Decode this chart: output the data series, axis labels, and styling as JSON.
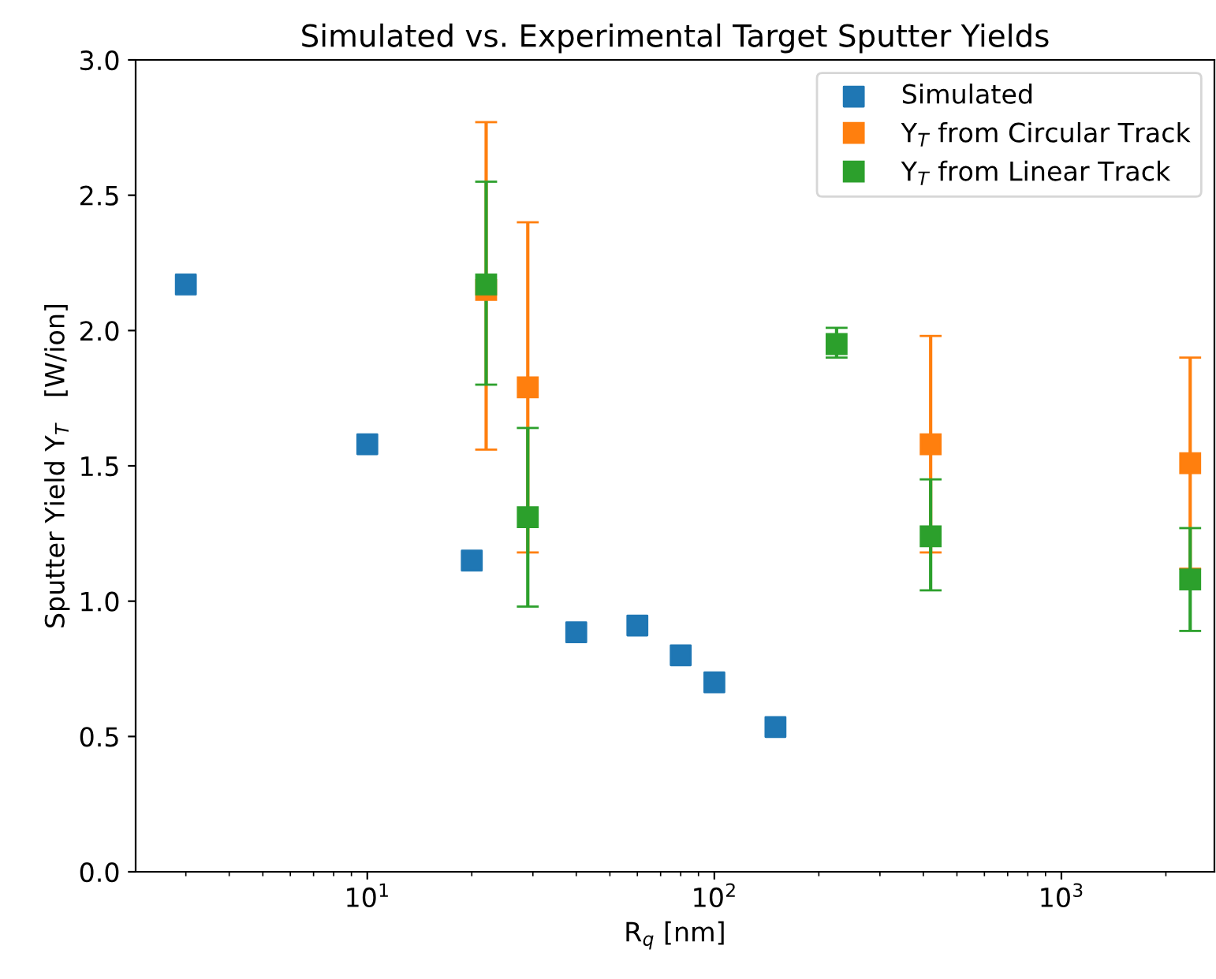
{
  "chart_data": {
    "type": "scatter",
    "title": "Simulated vs. Experimental Target Sputter Yields",
    "xlabel": "R$_{q}$ [nm]",
    "ylabel": "Sputter Yield Y$_{T}$   [W/ion]",
    "log": "x",
    "marker": "square",
    "grid": false,
    "legend": "top right",
    "xlim": [
      2.15,
      2760
    ],
    "xticks": [
      {
        "value": 10,
        "label": "10$^{1}$"
      },
      {
        "value": 100,
        "label": "10$^{2}$"
      },
      {
        "value": 1000,
        "label": "10$^{3}$"
      }
    ],
    "ylim": [
      0,
      3.0
    ],
    "yticks": [
      {
        "value": 0,
        "label": "0.0"
      },
      {
        "value": 0.5,
        "label": "0.5"
      },
      {
        "value": 1,
        "label": "1.0"
      },
      {
        "value": 1.5,
        "label": "1.5"
      },
      {
        "value": 2,
        "label": "2.0"
      },
      {
        "value": 2.5,
        "label": "2.5"
      },
      {
        "value": 3,
        "label": "3.0"
      }
    ],
    "series": [
      {
        "name": "Simulated",
        "color": "#1f77b4",
        "x": [
          3,
          10,
          20,
          40,
          60,
          80,
          100,
          150
        ],
        "values": [
          2.17,
          1.58,
          1.15,
          0.885,
          0.91,
          0.8,
          0.7,
          0.535
        ]
      },
      {
        "name": "Y$_{T}$ from Circular Track",
        "color": "#ff7f0e",
        "x": [
          22,
          29,
          420,
          2350
        ],
        "values": [
          2.15,
          1.79,
          1.58,
          1.51
        ],
        "errors": [
          [
            1.56,
            2.77
          ],
          [
            1.18,
            2.4
          ],
          [
            1.18,
            1.98
          ],
          [
            1.12,
            1.9
          ]
        ]
      },
      {
        "name": "Y$_{T}$ from Linear Track",
        "color": "#2ca02c",
        "x": [
          22,
          29,
          225,
          420,
          2350
        ],
        "values": [
          2.17,
          1.31,
          1.95,
          1.24,
          1.08
        ],
        "errors": [
          [
            1.8,
            2.55
          ],
          [
            0.98,
            1.64
          ],
          [
            1.9,
            2.01
          ],
          [
            1.04,
            1.45
          ],
          [
            0.89,
            1.27
          ]
        ]
      }
    ]
  }
}
